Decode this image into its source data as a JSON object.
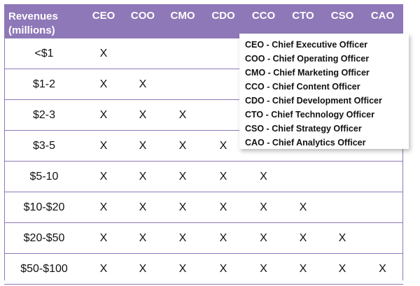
{
  "chart_data": {
    "type": "table",
    "header": {
      "row_label": [
        "Revenues",
        "(millions)"
      ],
      "columns": [
        "CEO",
        "COO",
        "CMO",
        "CDO",
        "CCO",
        "CTO",
        "CSO",
        "CAO"
      ]
    },
    "rows": [
      {
        "label": "<$1",
        "cells": [
          "X",
          "",
          "",
          "",
          "",
          "",
          "",
          ""
        ]
      },
      {
        "label": "$1-2",
        "cells": [
          "X",
          "X",
          "",
          "",
          "",
          "",
          "",
          ""
        ]
      },
      {
        "label": "$2-3",
        "cells": [
          "X",
          "X",
          "X",
          "",
          "",
          "",
          "",
          ""
        ]
      },
      {
        "label": "$3-5",
        "cells": [
          "X",
          "X",
          "X",
          "X",
          "",
          "",
          "",
          ""
        ]
      },
      {
        "label": "$5-10",
        "cells": [
          "X",
          "X",
          "X",
          "X",
          "X",
          "",
          "",
          ""
        ]
      },
      {
        "label": "$10-$20",
        "cells": [
          "X",
          "X",
          "X",
          "X",
          "X",
          "X",
          "",
          ""
        ]
      },
      {
        "label": "$20-$50",
        "cells": [
          "X",
          "X",
          "X",
          "X",
          "X",
          "X",
          "X",
          ""
        ]
      },
      {
        "label": "$50-$100",
        "cells": [
          "X",
          "X",
          "X",
          "X",
          "X",
          "X",
          "X",
          "X"
        ]
      }
    ],
    "legend": [
      "CEO - Chief Executive Officer",
      "COO - Chief Operating Officer",
      "CMO - Chief Marketing Officer",
      "CCO - Chief Content Officer",
      "CDO - Chief Development Officer",
      "CTO - Chief Technology Officer",
      "CSO - Chief Strategy Officer",
      "CAO - Chief Analytics Officer"
    ],
    "legend_placement": "top-right",
    "colors": {
      "header": "#8e78b8",
      "grid": "#8e78b8",
      "text": "#111111"
    }
  }
}
